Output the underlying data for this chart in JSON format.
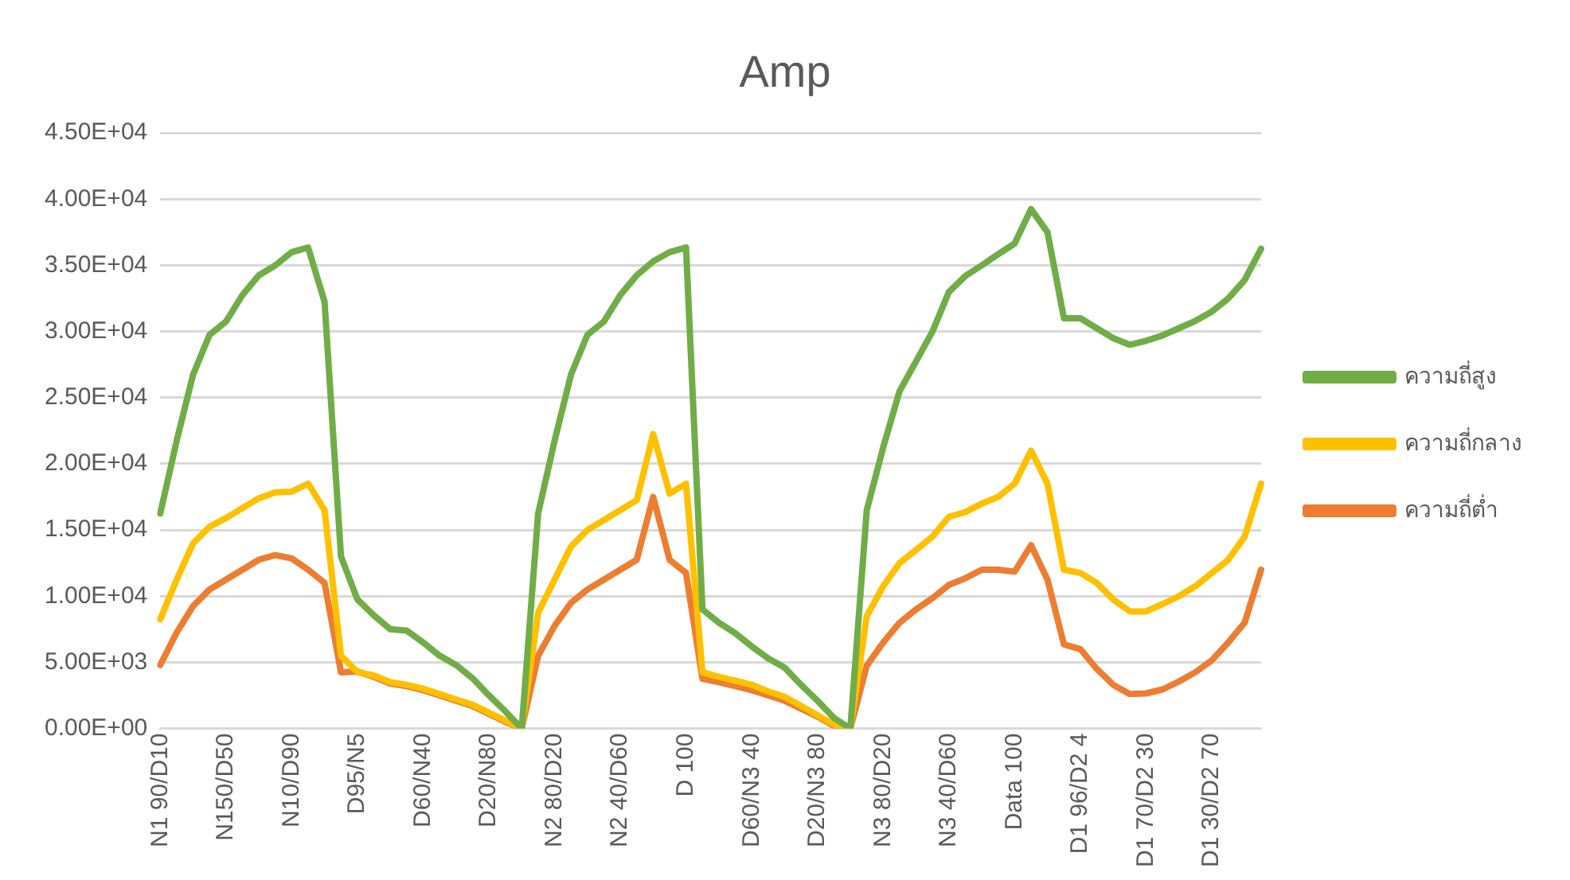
{
  "chart_data": {
    "type": "line",
    "title": "Amp",
    "categories": [
      "N1 90/D10",
      null,
      null,
      null,
      "N150/D50",
      null,
      null,
      null,
      "N10/D90",
      null,
      null,
      null,
      "D95/N5",
      null,
      null,
      null,
      "D60/N40",
      null,
      null,
      null,
      "D20/N80",
      null,
      null,
      null,
      "N2 80/D20",
      null,
      null,
      null,
      "N2 40/D60",
      null,
      null,
      null,
      "D 100",
      null,
      null,
      null,
      "D60/N3 40",
      null,
      null,
      null,
      "D20/N3 80",
      null,
      null,
      null,
      "N3 80/D20",
      null,
      null,
      null,
      "N3 40/D60",
      null,
      null,
      null,
      "Data 100",
      null,
      null,
      null,
      "D1 96/D2 4",
      null,
      null,
      null,
      "D1 70/D2 30",
      null,
      null,
      null,
      "D1 30/D2 70",
      null,
      null,
      null
    ],
    "series": [
      {
        "name": "ความถี่สูง",
        "color": "#70ad47",
        "values": [
          16250,
          21750,
          26750,
          29750,
          30750,
          32750,
          34250,
          35000,
          36000,
          36350,
          32250,
          13000,
          9750,
          8550,
          7500,
          7400,
          6500,
          5500,
          4800,
          3800,
          2500,
          1300,
          0,
          16250,
          21750,
          26750,
          29750,
          30750,
          32750,
          34250,
          35300,
          36000,
          36350,
          9000,
          8000,
          7200,
          6200,
          5300,
          4600,
          3300,
          2100,
          800,
          0,
          16500,
          21250,
          25500,
          27750,
          30000,
          33000,
          34200,
          35000,
          35850,
          36650,
          39250,
          37500,
          31000,
          31000,
          30250,
          29500,
          29000,
          29300,
          29700,
          30250,
          30800,
          31500,
          32500,
          33900,
          36250
        ]
      },
      {
        "name": "ความถี่กลาง",
        "color": "#ffc000",
        "values": [
          8250,
          11250,
          14000,
          15250,
          15900,
          16650,
          17400,
          17850,
          17900,
          18500,
          16500,
          5500,
          4250,
          4000,
          3500,
          3300,
          3000,
          2600,
          2200,
          1800,
          1200,
          600,
          0,
          8750,
          11250,
          13750,
          15000,
          15750,
          16500,
          17250,
          22250,
          17750,
          18500,
          4250,
          3900,
          3600,
          3300,
          2800,
          2400,
          1700,
          1000,
          300,
          0,
          8500,
          10750,
          12500,
          13500,
          14500,
          16000,
          16350,
          17000,
          17500,
          18500,
          21000,
          18500,
          12000,
          11750,
          11000,
          9750,
          8850,
          8850,
          9400,
          10000,
          10750,
          11750,
          12750,
          14500,
          18500
        ]
      },
      {
        "name": "ความถี่ต่ำ",
        "color": "#ed7d31",
        "values": [
          4800,
          7250,
          9250,
          10500,
          11250,
          12000,
          12750,
          13100,
          12850,
          12000,
          11000,
          4250,
          4300,
          3900,
          3400,
          3200,
          2900,
          2500,
          2100,
          1700,
          1100,
          500,
          0,
          5500,
          7750,
          9500,
          10500,
          11250,
          12000,
          12750,
          17500,
          12750,
          11750,
          3750,
          3500,
          3200,
          2900,
          2500,
          2100,
          1500,
          900,
          200,
          0,
          4750,
          6500,
          8000,
          9000,
          9850,
          10850,
          11350,
          12000,
          12000,
          11850,
          13850,
          11250,
          6350,
          6000,
          4500,
          3300,
          2600,
          2650,
          2950,
          3550,
          4250,
          5150,
          6500,
          8000,
          12000
        ]
      }
    ],
    "ylim": [
      0,
      45000
    ],
    "yticks": [
      {
        "value": 0,
        "label": "0.00E+00"
      },
      {
        "value": 5000,
        "label": "5.00E+03"
      },
      {
        "value": 10000,
        "label": "1.00E+04"
      },
      {
        "value": 15000,
        "label": "1.50E+04"
      },
      {
        "value": 20000,
        "label": "2.00E+04"
      },
      {
        "value": 25000,
        "label": "2.50E+04"
      },
      {
        "value": 30000,
        "label": "3.00E+04"
      },
      {
        "value": 35000,
        "label": "3.50E+04"
      },
      {
        "value": 40000,
        "label": "4.00E+04"
      },
      {
        "value": 45000,
        "label": "4.50E+04"
      }
    ],
    "grid": "y",
    "legend": "right",
    "marker": "none",
    "line_style": "solid"
  }
}
